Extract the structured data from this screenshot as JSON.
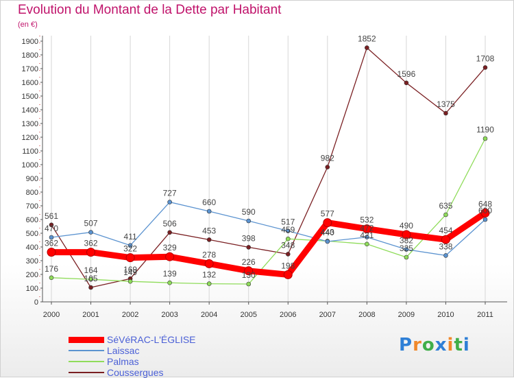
{
  "title": "Evolution du Montant de la Dette par Habitant",
  "unit": "(en €)",
  "logo": [
    "P",
    "r",
    "o",
    "x",
    "i",
    "t",
    "i"
  ],
  "logo_colors": [
    "#2e7fd6",
    "#f0882a",
    "#3fae49",
    "#2e7fd6",
    "#f0882a",
    "#3fae49",
    "#2e7fd6"
  ],
  "chart_data": {
    "type": "line",
    "title": "Evolution du Montant de la Dette par Habitant",
    "ylabel": "(en €)",
    "xlabel": "",
    "x": [
      "2000",
      "2001",
      "2002",
      "2003",
      "2004",
      "2005",
      "2006",
      "2007",
      "2008",
      "2009",
      "2010",
      "2011"
    ],
    "ylim": [
      0,
      1900
    ],
    "yticks": [
      0,
      100,
      200,
      300,
      400,
      500,
      600,
      700,
      800,
      900,
      1000,
      1100,
      1200,
      1300,
      1400,
      1500,
      1600,
      1700,
      1800,
      1900
    ],
    "grid": "vertical",
    "legend": "bottom-left",
    "series": [
      {
        "name": "Coussergues",
        "color": "#7a1f22",
        "values": [
          561,
          105,
          169,
          506,
          453,
          398,
          348,
          982,
          1852,
          1596,
          1375,
          1708
        ]
      },
      {
        "name": "Palmas",
        "color": "#8fdc5a",
        "values": [
          176,
          164,
          149,
          139,
          132,
          130,
          459,
          443,
          421,
          325,
          635,
          1190
        ]
      },
      {
        "name": "Laissac",
        "color": "#5b93d0",
        "values": [
          470,
          507,
          411,
          727,
          660,
          590,
          517,
          440,
          472,
          382,
          338,
          600
        ]
      },
      {
        "name": "SéVéRAC-L'ÉGLISE",
        "color": "#ff0000",
        "values": [
          362,
          362,
          322,
          329,
          278,
          226,
          198,
          577,
          532,
          490,
          454,
          648
        ]
      }
    ]
  }
}
